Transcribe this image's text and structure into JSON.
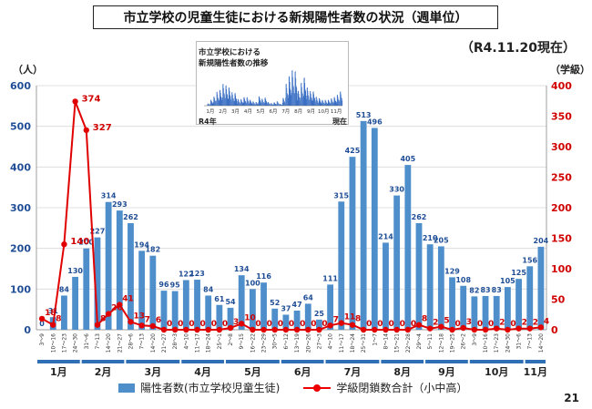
{
  "title": "市立学校の児童生徒における新規陽性者数の状況（週単位）",
  "as_of": "（R4.11.20現在）",
  "left_axis_unit": "（人）",
  "right_axis_unit": "（学級）",
  "inset": {
    "title_line1": "市立学校における",
    "title_line2": "新規陽性者数の推移",
    "left_label": "R4年",
    "right_label": "現在",
    "months": [
      "1月",
      "2月",
      "3月",
      "4月",
      "5月",
      "6月",
      "7月",
      "8月",
      "9月",
      "10月",
      "11月"
    ]
  },
  "legend": {
    "bar_label": "陽性者数(市立学校児童生徒)",
    "line_label": "学級閉鎖数合計（小中高）"
  },
  "page_number": "21",
  "colors": {
    "bar": "#4e8fcb",
    "line": "#e00000",
    "left_axis": "#1f4e96",
    "right_axis": "#d00000",
    "month_band": "#2e6fb5"
  },
  "chart_data": {
    "type": "bar",
    "categories": [
      "3～9",
      "10～16",
      "17～23",
      "24～30",
      "31～6",
      "7～13",
      "14～20",
      "21～27",
      "28～6",
      "7～13",
      "14～20",
      "21～27",
      "28～3",
      "4～10",
      "11～17",
      "18～24",
      "25～1",
      "2～8",
      "9～15",
      "16～22",
      "23～29",
      "30～5",
      "6～12",
      "13～19",
      "20～26",
      "27～3",
      "4～10",
      "11～17",
      "18～24",
      "25～31",
      "1～7",
      "8～14",
      "15～21",
      "22～28",
      "29～4",
      "5～11",
      "12～18",
      "19～25",
      "26～2",
      "3～9",
      "10～16",
      "17～23",
      "24～30",
      "31～6",
      "7～13",
      "14～20"
    ],
    "months": [
      {
        "label": "1月",
        "weeks": 4
      },
      {
        "label": "2月",
        "weeks": 4
      },
      {
        "label": "3月",
        "weeks": 5
      },
      {
        "label": "4月",
        "weeks": 4
      },
      {
        "label": "5月",
        "weeks": 5
      },
      {
        "label": "6月",
        "weeks": 4
      },
      {
        "label": "7月",
        "weeks": 5
      },
      {
        "label": "8月",
        "weeks": 4
      },
      {
        "label": "9月",
        "weeks": 4
      },
      {
        "label": "10月",
        "weeks": 5
      },
      {
        "label": "11月",
        "weeks": 2
      }
    ],
    "series": [
      {
        "name": "陽性者数(市立学校児童生徒)",
        "type": "bar",
        "axis": "left",
        "values": [
          0,
          31,
          84,
          130,
          200,
          227,
          314,
          293,
          262,
          194,
          182,
          96,
          95,
          122,
          123,
          84,
          61,
          54,
          134,
          100,
          116,
          52,
          37,
          47,
          64,
          25,
          111,
          315,
          425,
          513,
          496,
          214,
          330,
          405,
          262,
          210,
          205,
          129,
          108,
          82,
          83,
          83,
          105,
          125,
          156,
          204
        ]
      },
      {
        "name": "学級閉鎖数合計（小中高）",
        "type": "line",
        "axis": "right",
        "values": [
          18,
          8,
          140,
          374,
          327,
          8,
          26,
          41,
          13,
          7,
          6,
          0,
          0,
          0,
          0,
          0,
          0,
          3,
          10,
          0,
          0,
          0,
          0,
          0,
          0,
          0,
          7,
          11,
          8,
          0,
          0,
          0,
          0,
          0,
          8,
          2,
          5,
          0,
          3,
          0,
          0,
          2,
          0,
          2,
          2,
          4
        ]
      }
    ],
    "ylim_left": [
      0,
      600
    ],
    "yticks_left": [
      0,
      100,
      200,
      300,
      400,
      500,
      600
    ],
    "ylim_right": [
      0,
      400
    ],
    "yticks_right": [
      0,
      50,
      100,
      150,
      200,
      250,
      300,
      350,
      400
    ],
    "legend_position": "bottom"
  }
}
